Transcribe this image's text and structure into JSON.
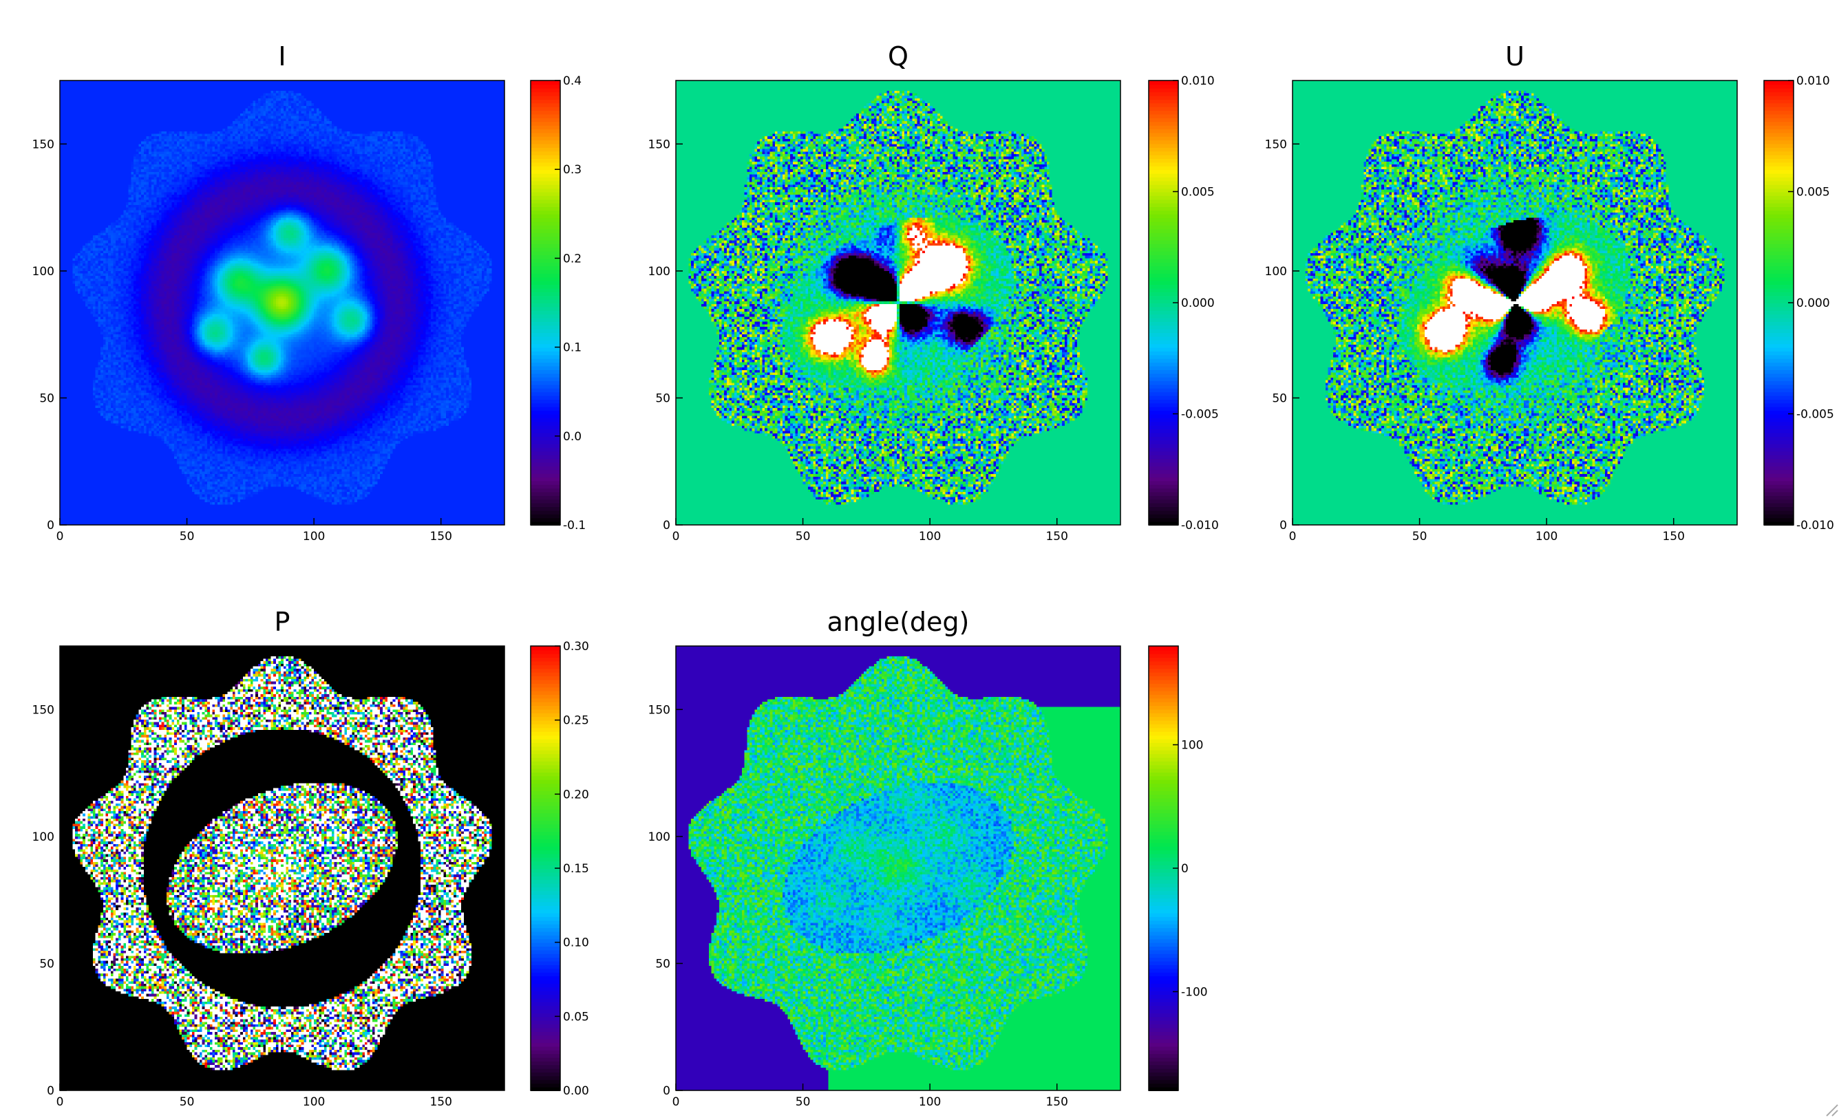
{
  "chart_data": [
    {
      "type": "heatmap",
      "title": "I",
      "x_ticks": [
        0,
        50,
        100,
        150
      ],
      "y_ticks": [
        0,
        50,
        100,
        150
      ],
      "xlim": [
        0,
        175
      ],
      "ylim": [
        0,
        175
      ],
      "colorbar": {
        "range": [
          -0.1,
          0.4
        ],
        "ticks": [
          -0.1,
          0.0,
          0.1,
          0.2,
          0.3,
          0.4
        ],
        "tick_labels": [
          "-0.1",
          "0.0",
          "0.1",
          "0.2",
          "0.3",
          "0.4"
        ]
      },
      "colormap": "rainbow",
      "background_value": 0.04,
      "description_values": {
        "background": 0.04,
        "outer_envelope": 0.05,
        "dark_ring": -0.02,
        "center_clumps": 0.12,
        "peak": 0.28
      }
    },
    {
      "type": "heatmap",
      "title": "Q",
      "x_ticks": [
        0,
        50,
        100,
        150
      ],
      "y_ticks": [
        0,
        50,
        100,
        150
      ],
      "xlim": [
        0,
        175
      ],
      "ylim": [
        0,
        175
      ],
      "colorbar": {
        "range": [
          -0.01,
          0.01
        ],
        "ticks": [
          -0.01,
          -0.005,
          0.0,
          0.005,
          0.01
        ],
        "tick_labels": [
          "-0.010",
          "-0.005",
          "0.000",
          "0.005",
          "0.010"
        ]
      },
      "colormap": "rainbow",
      "background_value": 0.0
    },
    {
      "type": "heatmap",
      "title": "U",
      "x_ticks": [
        0,
        50,
        100,
        150
      ],
      "y_ticks": [
        0,
        50,
        100,
        150
      ],
      "xlim": [
        0,
        175
      ],
      "ylim": [
        0,
        175
      ],
      "colorbar": {
        "range": [
          -0.01,
          0.01
        ],
        "ticks": [
          -0.01,
          -0.005,
          0.0,
          0.005,
          0.01
        ],
        "tick_labels": [
          "-0.010",
          "-0.005",
          "0.000",
          "0.005",
          "0.010"
        ]
      },
      "colormap": "rainbow",
      "background_value": 0.0
    },
    {
      "type": "heatmap",
      "title": "P",
      "x_ticks": [
        0,
        50,
        100,
        150
      ],
      "y_ticks": [
        0,
        50,
        100,
        150
      ],
      "xlim": [
        0,
        175
      ],
      "ylim": [
        0,
        175
      ],
      "colorbar": {
        "range": [
          0.0,
          0.3
        ],
        "ticks": [
          0.0,
          0.05,
          0.1,
          0.15,
          0.2,
          0.25,
          0.3
        ],
        "tick_labels": [
          "0.00",
          "0.05",
          "0.10",
          "0.15",
          "0.20",
          "0.25",
          "0.30"
        ]
      },
      "colormap": "rainbow",
      "background_value": 0.0
    },
    {
      "type": "heatmap",
      "title": "angle(deg)",
      "x_ticks": [
        0,
        50,
        100,
        150
      ],
      "y_ticks": [
        0,
        50,
        100,
        150
      ],
      "xlim": [
        0,
        175
      ],
      "ylim": [
        0,
        175
      ],
      "colorbar": {
        "range": [
          -180,
          180
        ],
        "ticks": [
          -100,
          0,
          100
        ],
        "tick_labels": [
          "-100",
          "0",
          "100"
        ]
      },
      "colormap": "rainbow",
      "background_value": 0
    }
  ],
  "colors": {
    "background": "#ffffff",
    "axis": "#000000",
    "saturated_high": "#ffffff",
    "saturated_low": "#000000"
  }
}
